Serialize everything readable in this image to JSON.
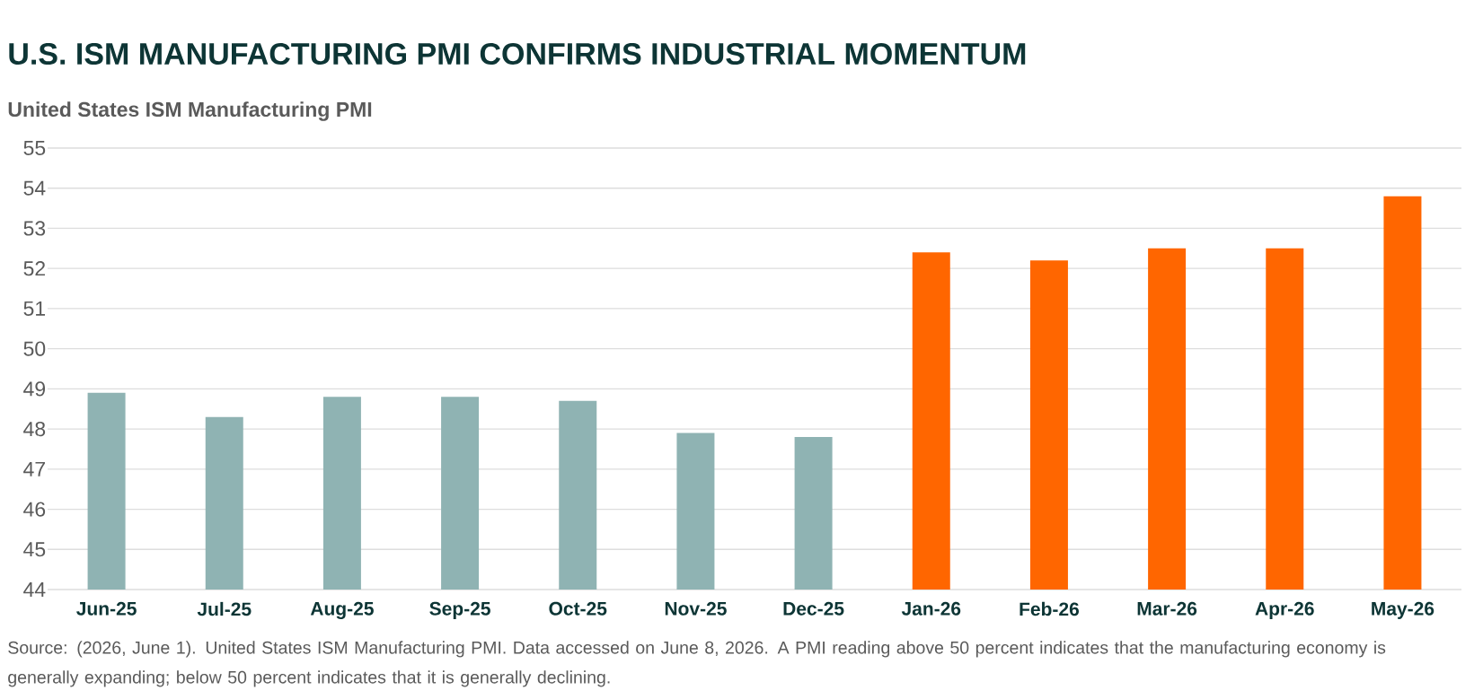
{
  "chart_data": {
    "type": "bar",
    "title": "U.S. ISM MANUFACTURING PMI CONFIRMS INDUSTRIAL MOMENTUM",
    "subtitle": "United States ISM Manufacturing PMI",
    "categories": [
      "Jun-25",
      "Jul-25",
      "Aug-25",
      "Sep-25",
      "Oct-25",
      "Nov-25",
      "Dec-25",
      "Jan-26",
      "Feb-26",
      "Mar-26",
      "Apr-26",
      "May-26"
    ],
    "values": [
      48.9,
      48.3,
      48.8,
      48.8,
      48.7,
      47.9,
      47.8,
      52.4,
      52.2,
      52.5,
      52.5,
      53.8
    ],
    "colors": [
      "#8fb3b3",
      "#8fb3b3",
      "#8fb3b3",
      "#8fb3b3",
      "#8fb3b3",
      "#8fb3b3",
      "#8fb3b3",
      "#ff6600",
      "#ff6600",
      "#ff6600",
      "#ff6600",
      "#ff6600"
    ],
    "ylim": [
      44,
      55
    ],
    "yticks": [
      44,
      45,
      46,
      47,
      48,
      49,
      50,
      51,
      52,
      53,
      54,
      55
    ],
    "grid": "y",
    "annotations": [
      "Source: (2026, June 1). United States ISM Manufacturing PMI. Data accessed on June 8, 2026. A PMI reading above 50 percent indicates that the manufacturing economy is generally expanding; below 50 percent indicates that it is generally declining."
    ]
  }
}
